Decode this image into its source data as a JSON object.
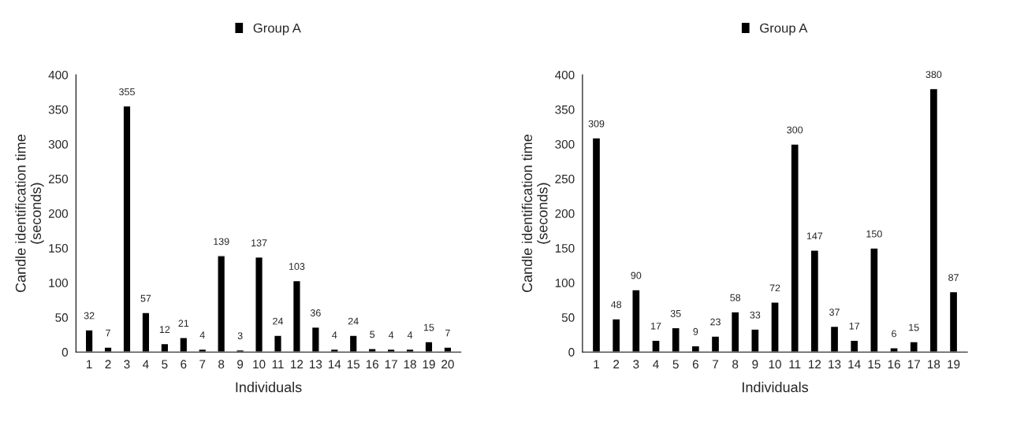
{
  "chart_data": [
    {
      "type": "bar",
      "xlabel": "Individuals",
      "ylabel": "Candle identification time\n(seconds)",
      "categories": [
        "1",
        "2",
        "3",
        "4",
        "5",
        "6",
        "7",
        "8",
        "9",
        "10",
        "11",
        "12",
        "13",
        "14",
        "15",
        "16",
        "17",
        "18",
        "19",
        "20"
      ],
      "series": [
        {
          "name": "Group A",
          "color": "#000000",
          "values": [
            32,
            7,
            355,
            57,
            12,
            21,
            4,
            139,
            3,
            137,
            24,
            103,
            36,
            4,
            24,
            5,
            4,
            4,
            15,
            7
          ]
        }
      ],
      "ylim": [
        0,
        400
      ],
      "yticks": [
        0,
        50,
        100,
        150,
        200,
        250,
        300,
        350,
        400
      ],
      "data_labels": true,
      "legend": "top",
      "grid": false
    },
    {
      "type": "bar",
      "xlabel": "Individuals",
      "ylabel": "Candle identification time\n(seconds)",
      "categories": [
        "1",
        "2",
        "3",
        "4",
        "5",
        "6",
        "7",
        "8",
        "9",
        "10",
        "11",
        "12",
        "13",
        "14",
        "15",
        "16",
        "17",
        "18",
        "19"
      ],
      "series": [
        {
          "name": "Group A",
          "color": "#000000",
          "values": [
            309,
            48,
            90,
            17,
            35,
            9,
            23,
            58,
            33,
            72,
            300,
            147,
            37,
            17,
            150,
            6,
            15,
            380,
            87
          ]
        }
      ],
      "ylim": [
        0,
        400
      ],
      "yticks": [
        0,
        50,
        100,
        150,
        200,
        250,
        300,
        350,
        400
      ],
      "data_labels": true,
      "legend": "top",
      "grid": false
    }
  ]
}
